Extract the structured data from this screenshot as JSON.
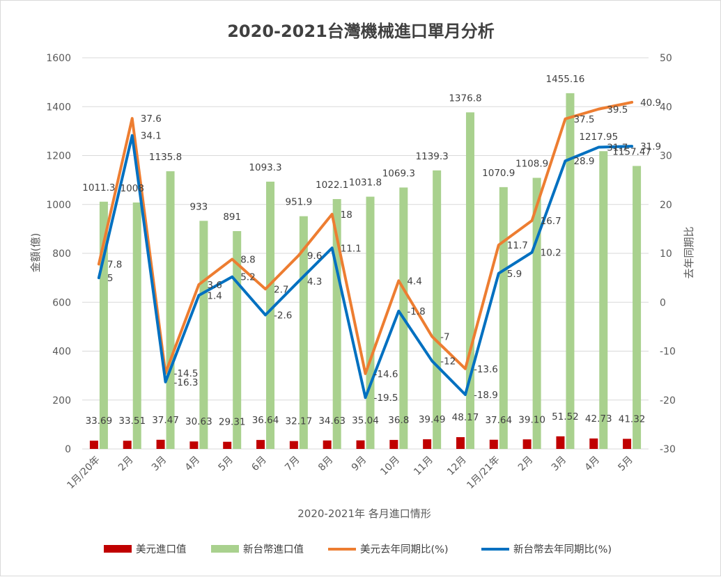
{
  "chart_data": {
    "type": "bar+line",
    "title": "2020-2021台灣機械進口單月分析",
    "xlabel": "2020-2021年 各月進口情形",
    "ylabel": "金額(億)",
    "y2label": "去年同期比",
    "ylim": [
      0,
      1600
    ],
    "yticks": [
      0,
      200,
      400,
      600,
      800,
      1000,
      1200,
      1400,
      1600
    ],
    "y2lim": [
      -30,
      50
    ],
    "y2ticks": [
      -30,
      -20,
      -10,
      0,
      10,
      20,
      30,
      40,
      50
    ],
    "categories": [
      "1月/20年",
      "2月",
      "3月",
      "4月",
      "5月",
      "6月",
      "7月",
      "8月",
      "9月",
      "10月",
      "11月",
      "12月",
      "1月/21年",
      "2月",
      "3月",
      "4月",
      "5月"
    ],
    "series": [
      {
        "name": "美元進口值",
        "type": "bar",
        "axis": "left",
        "color": "#c00000",
        "values": [
          33.69,
          33.51,
          37.47,
          30.63,
          29.31,
          36.64,
          32.17,
          34.63,
          35.04,
          36.8,
          39.49,
          48.17,
          37.64,
          39.1,
          51.52,
          42.73,
          41.32
        ],
        "labels": [
          "33.69",
          "33.51",
          "37.47",
          "30.63",
          "29.31",
          "36.64",
          "32.17",
          "34.63",
          "35.04",
          "36.8",
          "39.49",
          "48.17",
          "37.64",
          "39.10",
          "51.52",
          "42.73",
          "41.32"
        ]
      },
      {
        "name": "新台幣進口值",
        "type": "bar",
        "axis": "left",
        "color": "#a9d18e",
        "values": [
          1011.3,
          1008,
          1135.8,
          933,
          891,
          1093.3,
          951.9,
          1022.1,
          1031.8,
          1069.3,
          1139.3,
          1376.8,
          1070.9,
          1108.9,
          1455.16,
          1217.95,
          1157.47
        ],
        "labels": [
          "1011.3",
          "1008",
          "1135.8",
          "933",
          "891",
          "1093.3",
          "951.9",
          "1022.1",
          "1031.8",
          "1069.3",
          "1139.3",
          "1376.8",
          "1070.9",
          "1108.9",
          "1455.16",
          "1217.95",
          "1157.47"
        ]
      },
      {
        "name": "美元去年同期比(%)",
        "type": "line",
        "axis": "right",
        "color": "#ed7d31",
        "values": [
          7.8,
          37.6,
          -14.5,
          3.6,
          8.8,
          2.7,
          9.6,
          18,
          -14.6,
          4.4,
          -7,
          -13.6,
          11.7,
          16.7,
          37.5,
          39.5,
          40.9
        ],
        "labels": [
          "7.8",
          "37.6",
          "-14.5",
          "3.6",
          "8.8",
          "2.7",
          "9.6",
          "18",
          "-14.6",
          "4.4",
          "-7",
          "-13.6",
          "11.7",
          "16.7",
          "37.5",
          "39.5",
          "40.9"
        ]
      },
      {
        "name": "新台幣去年同期比(%)",
        "type": "line",
        "axis": "right",
        "color": "#0070c0",
        "values": [
          5,
          34.1,
          -16.3,
          1.4,
          5.2,
          -2.6,
          4.3,
          11.1,
          -19.5,
          -1.8,
          -12,
          -18.9,
          5.9,
          10.2,
          28.9,
          31.7,
          31.9
        ],
        "labels": [
          "5",
          "34.1",
          "-16.3",
          "1.4",
          "5.2",
          "-2.6",
          "4.3",
          "11.1",
          "-19.5",
          "-1.8",
          "-12",
          "-18.9",
          "5.9",
          "10.2",
          "28.9",
          "31.7",
          "31.9"
        ]
      }
    ],
    "legend": [
      "美元進口值",
      "新台幣進口值",
      "美元去年同期比(%)",
      "新台幣去年同期比(%)"
    ],
    "legend_position": "bottom",
    "grid": true
  }
}
